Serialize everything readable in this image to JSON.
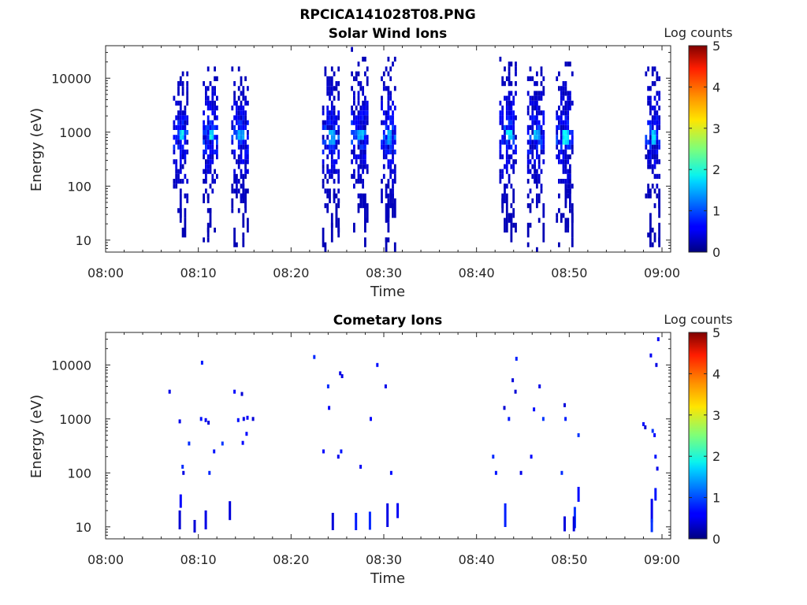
{
  "figure_title": "RPCICA141028T08.PNG",
  "chart_data": [
    {
      "type": "heatmap",
      "title": "Solar Wind Ions",
      "xlabel": "Time",
      "ylabel": "Energy (eV)",
      "yscale": "log",
      "xlim_minutes": [
        0,
        61
      ],
      "ylim": [
        6,
        40000
      ],
      "xticks": [
        "08:00",
        "08:10",
        "08:20",
        "08:30",
        "08:40",
        "08:50",
        "09:00"
      ],
      "yticks": [
        "10",
        "100",
        "1000",
        "10000"
      ],
      "colorbar": {
        "label": "Log counts",
        "ticks": [
          "0",
          "1",
          "2",
          "3",
          "4",
          "5"
        ],
        "range": [
          0,
          5
        ],
        "colormap": "jet"
      },
      "bursts": [
        {
          "t": 8.1,
          "width": 0.7,
          "peak_energy": 900,
          "peak_log_counts": 2.0,
          "emax": 13000,
          "emin": 6
        },
        {
          "t": 11.3,
          "width": 0.8,
          "peak_energy": 900,
          "peak_log_counts": 2.0,
          "emax": 18000,
          "emin": 6
        },
        {
          "t": 14.5,
          "width": 0.9,
          "peak_energy": 900,
          "peak_log_counts": 1.6,
          "emax": 18000,
          "emin": 6
        },
        {
          "t": 24.3,
          "width": 0.9,
          "peak_energy": 850,
          "peak_log_counts": 1.6,
          "emax": 18000,
          "emin": 6
        },
        {
          "t": 27.4,
          "width": 0.9,
          "peak_energy": 900,
          "peak_log_counts": 1.6,
          "emax": 38000,
          "emin": 6
        },
        {
          "t": 30.5,
          "width": 0.8,
          "peak_energy": 850,
          "peak_log_counts": 1.5,
          "emax": 25000,
          "emin": 6
        },
        {
          "t": 43.4,
          "width": 0.9,
          "peak_energy": 900,
          "peak_log_counts": 1.8,
          "emax": 25000,
          "emin": 6
        },
        {
          "t": 46.4,
          "width": 0.9,
          "peak_energy": 900,
          "peak_log_counts": 1.6,
          "emax": 18000,
          "emin": 6
        },
        {
          "t": 49.5,
          "width": 0.9,
          "peak_energy": 850,
          "peak_log_counts": 2.0,
          "emax": 22000,
          "emin": 6
        },
        {
          "t": 59.0,
          "width": 0.8,
          "peak_energy": 850,
          "peak_log_counts": 1.8,
          "emax": 18000,
          "emin": 6
        }
      ]
    },
    {
      "type": "heatmap",
      "title": "Cometary Ions",
      "xlabel": "Time",
      "ylabel": "Energy (eV)",
      "yscale": "log",
      "xlim_minutes": [
        0,
        61
      ],
      "ylim": [
        6,
        40000
      ],
      "xticks": [
        "08:00",
        "08:10",
        "08:20",
        "08:30",
        "08:40",
        "08:50",
        "09:00"
      ],
      "yticks": [
        "10",
        "100",
        "1000",
        "10000"
      ],
      "colorbar": {
        "label": "Log counts",
        "ticks": [
          "0",
          "1",
          "2",
          "3",
          "4",
          "5"
        ],
        "range": [
          0,
          5
        ],
        "colormap": "jet"
      },
      "points": [
        [
          6.9,
          3200
        ],
        [
          8.0,
          900
        ],
        [
          8.3,
          130
        ],
        [
          8.4,
          100
        ],
        [
          9.0,
          350
        ],
        [
          8.1,
          30
        ],
        [
          8.0,
          10
        ],
        [
          9.6,
          10
        ],
        [
          10.3,
          1000
        ],
        [
          10.4,
          11000
        ],
        [
          10.8,
          950
        ],
        [
          11.1,
          850
        ],
        [
          11.2,
          100
        ],
        [
          11.7,
          250
        ],
        [
          12.6,
          350
        ],
        [
          13.4,
          20
        ],
        [
          13.9,
          3200
        ],
        [
          14.7,
          2900
        ],
        [
          14.3,
          950
        ],
        [
          14.9,
          1000
        ],
        [
          15.2,
          530
        ],
        [
          15.3,
          1050
        ],
        [
          14.8,
          360
        ],
        [
          15.9,
          1000
        ],
        [
          10.8,
          10
        ],
        [
          22.5,
          14000
        ],
        [
          23.5,
          250
        ],
        [
          24.0,
          4000
        ],
        [
          24.1,
          1600
        ],
        [
          25.3,
          7000
        ],
        [
          25.5,
          6200
        ],
        [
          25.1,
          200
        ],
        [
          25.4,
          250
        ],
        [
          24.5,
          10
        ],
        [
          27.0,
          10
        ],
        [
          27.5,
          130
        ],
        [
          28.5,
          10
        ],
        [
          29.3,
          10000
        ],
        [
          30.2,
          4000
        ],
        [
          30.8,
          100
        ],
        [
          30.4,
          10
        ],
        [
          31.5,
          20
        ],
        [
          28.6,
          1000
        ],
        [
          41.8,
          200
        ],
        [
          42.1,
          100
        ],
        [
          43.0,
          1600
        ],
        [
          43.1,
          10
        ],
        [
          43.5,
          1000
        ],
        [
          43.9,
          5200
        ],
        [
          44.3,
          13000
        ],
        [
          44.2,
          3200
        ],
        [
          44.8,
          100
        ],
        [
          45.9,
          200
        ],
        [
          46.2,
          1500
        ],
        [
          46.8,
          4000
        ],
        [
          47.2,
          1000
        ],
        [
          49.2,
          100
        ],
        [
          49.5,
          1800
        ],
        [
          49.5,
          10
        ],
        [
          49.6,
          1000
        ],
        [
          50.6,
          10
        ],
        [
          51.0,
          500
        ],
        [
          51.0,
          40
        ],
        [
          50.5,
          10
        ],
        [
          58.0,
          800
        ],
        [
          58.2,
          700
        ],
        [
          58.8,
          15000
        ],
        [
          58.9,
          20
        ],
        [
          59.0,
          600
        ],
        [
          59.2,
          500
        ],
        [
          59.3,
          200
        ],
        [
          59.4,
          10000
        ],
        [
          59.5,
          120
        ],
        [
          59.6,
          30000
        ],
        [
          59.3,
          40
        ],
        [
          58.9,
          10
        ]
      ]
    }
  ]
}
